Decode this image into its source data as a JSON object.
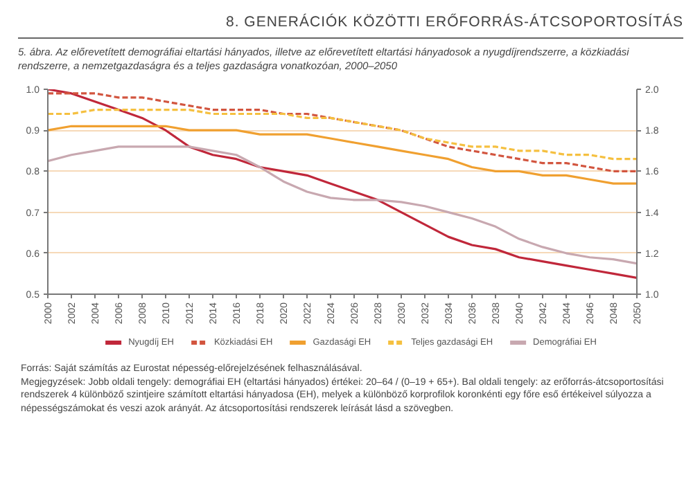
{
  "chart_data": {
    "type": "line",
    "title": "8. GENERÁCIÓK KÖZÖTTI ERŐFORRÁS-ÁTCSOPORTOSÍTÁS",
    "subtitle": "5. ábra. Az előrevetített demográfiai eltartási hányados, illetve az előrevetített eltartási hányadosok a nyugdíjrendszerre, a közkiadási rendszerre, a nemzetgazdaságra és a teljes gazdaságra vonatkozóan, 2000–2050",
    "x": [
      2000,
      2002,
      2004,
      2006,
      2008,
      2010,
      2012,
      2014,
      2016,
      2018,
      2020,
      2022,
      2024,
      2026,
      2028,
      2030,
      2032,
      2034,
      2036,
      2038,
      2040,
      2042,
      2044,
      2046,
      2048,
      2050
    ],
    "series": [
      {
        "name": "Nyugdíj EH",
        "color": "#c0273a",
        "line_style": "solid",
        "values": [
          1.0,
          0.99,
          0.97,
          0.95,
          0.93,
          0.9,
          0.86,
          0.84,
          0.83,
          0.81,
          0.8,
          0.79,
          0.77,
          0.75,
          0.73,
          0.7,
          0.67,
          0.64,
          0.62,
          0.61,
          0.59,
          0.58,
          0.57,
          0.56,
          0.55,
          0.54
        ]
      },
      {
        "name": "Közkiadási EH",
        "color": "#d2553f",
        "line_style": "dashed",
        "values": [
          0.99,
          0.99,
          0.99,
          0.98,
          0.98,
          0.97,
          0.96,
          0.95,
          0.95,
          0.95,
          0.94,
          0.94,
          0.93,
          0.92,
          0.91,
          0.9,
          0.88,
          0.86,
          0.85,
          0.84,
          0.83,
          0.82,
          0.82,
          0.81,
          0.8,
          0.8
        ]
      },
      {
        "name": "Gazdasági EH",
        "color": "#f0a030",
        "line_style": "solid",
        "values": [
          0.9,
          0.91,
          0.91,
          0.91,
          0.91,
          0.91,
          0.9,
          0.9,
          0.9,
          0.89,
          0.89,
          0.89,
          0.88,
          0.87,
          0.86,
          0.85,
          0.84,
          0.83,
          0.81,
          0.8,
          0.8,
          0.79,
          0.79,
          0.78,
          0.77,
          0.77
        ]
      },
      {
        "name": "Teljes gazdasági EH",
        "color": "#f5c040",
        "line_style": "dashed",
        "values": [
          0.94,
          0.94,
          0.95,
          0.95,
          0.95,
          0.95,
          0.95,
          0.94,
          0.94,
          0.94,
          0.94,
          0.93,
          0.93,
          0.92,
          0.91,
          0.9,
          0.88,
          0.87,
          0.86,
          0.86,
          0.85,
          0.85,
          0.84,
          0.84,
          0.83,
          0.83
        ]
      },
      {
        "name": "Demográfiai EH",
        "color": "#c8a8b0",
        "line_style": "solid",
        "axis": "y2",
        "values": [
          1.65,
          1.68,
          1.7,
          1.72,
          1.72,
          1.72,
          1.72,
          1.7,
          1.68,
          1.62,
          1.55,
          1.5,
          1.47,
          1.46,
          1.46,
          1.45,
          1.43,
          1.4,
          1.37,
          1.33,
          1.27,
          1.23,
          1.2,
          1.18,
          1.17,
          1.15
        ]
      }
    ],
    "xlim": [
      2000,
      2050
    ],
    "xticks": [
      2000,
      2002,
      2004,
      2006,
      2008,
      2010,
      2012,
      2014,
      2016,
      2018,
      2020,
      2022,
      2024,
      2026,
      2028,
      2030,
      2032,
      2034,
      2036,
      2038,
      2040,
      2042,
      2044,
      2046,
      2048,
      2050
    ],
    "ylim": [
      0.5,
      1.0
    ],
    "yticks": [
      {
        "value": 0.5,
        "label": "0.5"
      },
      {
        "value": 0.6,
        "label": "0.6"
      },
      {
        "value": 0.7,
        "label": "0.7"
      },
      {
        "value": 0.8,
        "label": "0.8"
      },
      {
        "value": 0.9,
        "label": "0.9"
      },
      {
        "value": 1.0,
        "label": "1.0"
      }
    ],
    "y2lim": [
      1.0,
      2.0
    ],
    "y2ticks": [
      {
        "value": 1.0,
        "label": "1.0"
      },
      {
        "value": 1.2,
        "label": "1.2"
      },
      {
        "value": 1.4,
        "label": "1.4"
      },
      {
        "value": 1.6,
        "label": "1.6"
      },
      {
        "value": 1.8,
        "label": "1.8"
      },
      {
        "value": 2.0,
        "label": "2.0"
      }
    ],
    "grid": "y",
    "legend": "bottom",
    "annotations": [
      "Forrás: Saját számítás az Eurostat népesség-előrejelzésének felhasználásával.",
      "Megjegyzések: Jobb oldali tengely: demográfiai EH (eltartási hányados) értékei: 20–64 / (0–19 + 65+). Bal oldali tengely: az erőforrás-átcsoportosítási rendszerek 4 különböző szintjeire számított eltartási hányadosa (EH), melyek a különböző korprofilok koronkénti egy főre eső értékeivel súlyozza a népességszámokat és veszi azok arányát. Az átcsoportosítási rendszerek leírását lásd a szövegben."
    ]
  }
}
